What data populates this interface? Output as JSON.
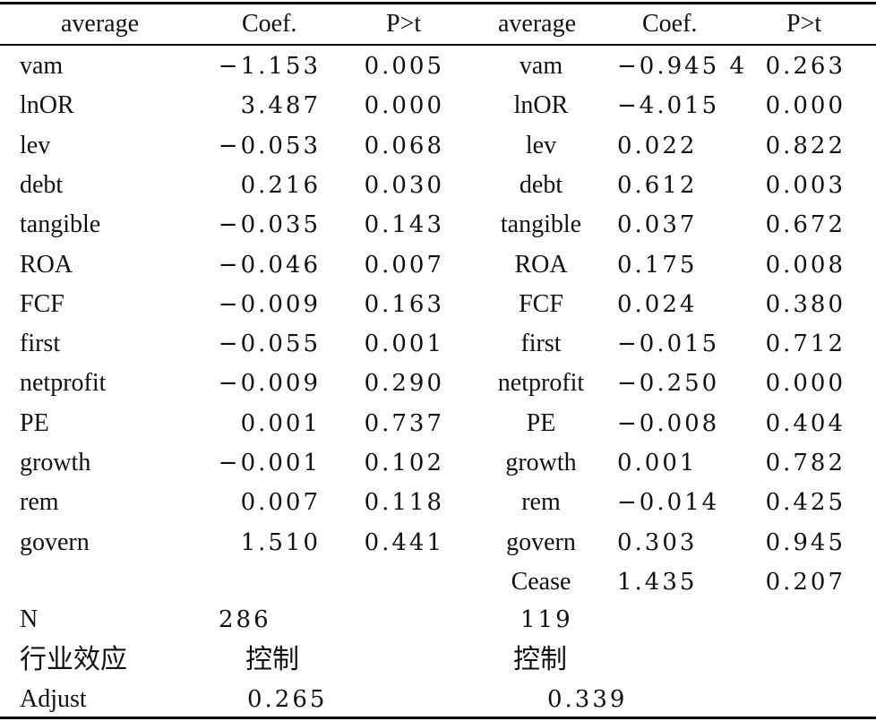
{
  "table": {
    "header": {
      "left": {
        "label": "average",
        "coef": "Coef.",
        "p": "P>t"
      },
      "right": {
        "label": "average",
        "coef": "Coef.",
        "p": "P>t"
      }
    },
    "rows": [
      {
        "left_name": "vam",
        "left_coef": "−1.153",
        "left_p": "0.005",
        "right_name": "vam",
        "right_coef": "−0.945 4",
        "right_p": "0.263"
      },
      {
        "left_name": "lnOR",
        "left_coef": "3.487",
        "left_p": "0.000",
        "right_name": "lnOR",
        "right_coef": "−4.015",
        "right_p": "0.000"
      },
      {
        "left_name": "lev",
        "left_coef": "−0.053",
        "left_p": "0.068",
        "right_name": "lev",
        "right_coef": "0.022",
        "right_p": "0.822"
      },
      {
        "left_name": "debt",
        "left_coef": "0.216",
        "left_p": "0.030",
        "right_name": "debt",
        "right_coef": "0.612",
        "right_p": "0.003"
      },
      {
        "left_name": "tangible",
        "left_coef": "−0.035",
        "left_p": "0.143",
        "right_name": "tangible",
        "right_coef": "0.037",
        "right_p": "0.672"
      },
      {
        "left_name": "ROA",
        "left_coef": "−0.046",
        "left_p": "0.007",
        "right_name": "ROA",
        "right_coef": "0.175",
        "right_p": "0.008"
      },
      {
        "left_name": "FCF",
        "left_coef": "−0.009",
        "left_p": "0.163",
        "right_name": "FCF",
        "right_coef": "0.024",
        "right_p": "0.380"
      },
      {
        "left_name": "first",
        "left_coef": "−0.055",
        "left_p": "0.001",
        "right_name": "first",
        "right_coef": "−0.015",
        "right_p": "0.712"
      },
      {
        "left_name": "netprofit",
        "left_coef": "−0.009",
        "left_p": "0.290",
        "right_name": "netprofit",
        "right_coef": "−0.250",
        "right_p": "0.000"
      },
      {
        "left_name": "PE",
        "left_coef": "0.001",
        "left_p": "0.737",
        "right_name": "PE",
        "right_coef": "−0.008",
        "right_p": "0.404"
      },
      {
        "left_name": "growth",
        "left_coef": "−0.001",
        "left_p": "0.102",
        "right_name": "growth",
        "right_coef": "0.001",
        "right_p": "0.782"
      },
      {
        "left_name": "rem",
        "left_coef": "0.007",
        "left_p": "0.118",
        "right_name": "rem",
        "right_coef": "−0.014",
        "right_p": "0.425"
      },
      {
        "left_name": "govern",
        "left_coef": "1.510",
        "left_p": "0.441",
        "right_name": "govern",
        "right_coef": "0.303",
        "right_p": "0.945"
      },
      {
        "left_name": "",
        "left_coef": "",
        "left_p": "",
        "right_name": "Cease",
        "right_coef": "1.435",
        "right_p": "0.207"
      }
    ],
    "footer": {
      "n": {
        "label": "N",
        "left": "286",
        "right": "119"
      },
      "industry": {
        "label": "行业效应",
        "left": "控制",
        "right": "控制"
      },
      "adjust": {
        "label": "Adjust",
        "left": "0.265",
        "right": "0.339"
      }
    }
  }
}
